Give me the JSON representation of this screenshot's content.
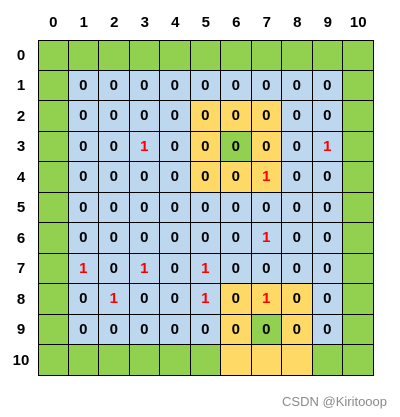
{
  "column_headers": [
    "0",
    "1",
    "2",
    "3",
    "4",
    "5",
    "6",
    "7",
    "8",
    "9",
    "10"
  ],
  "row_headers": [
    "0",
    "1",
    "2",
    "3",
    "4",
    "5",
    "6",
    "7",
    "8",
    "9",
    "10"
  ],
  "colors": {
    "green": "#92d050",
    "blue": "#bdd7ee",
    "orange": "#ffd966",
    "text": "#000000",
    "highlight_text": "#ff0000"
  },
  "cell_fill_rows": [
    "GGGGGGGGGGG",
    "GBBBBBBBBBG",
    "GBBBBOOOBBG",
    "GBBBBOGOBBG",
    "GBBBBOOOBBG",
    "GBBBBBBBBBG",
    "GBBBBBBBBBG",
    "GBBBBBBBBBG",
    "GBBBBBOOOBG",
    "GBBBBBOGOBG",
    "GGGGGGOOOGG"
  ],
  "grid_values": [
    [
      "",
      "",
      "",
      "",
      "",
      "",
      "",
      "",
      "",
      "",
      ""
    ],
    [
      "",
      "0",
      "0",
      "0",
      "0",
      "0",
      "0",
      "0",
      "0",
      "0",
      ""
    ],
    [
      "",
      "0",
      "0",
      "0",
      "0",
      "0",
      "0",
      "0",
      "0",
      "0",
      ""
    ],
    [
      "",
      "0",
      "0",
      "1",
      "0",
      "0",
      "0",
      "0",
      "0",
      "1",
      ""
    ],
    [
      "",
      "0",
      "0",
      "0",
      "0",
      "0",
      "0",
      "1",
      "0",
      "0",
      ""
    ],
    [
      "",
      "0",
      "0",
      "0",
      "0",
      "0",
      "0",
      "0",
      "0",
      "0",
      ""
    ],
    [
      "",
      "0",
      "0",
      "0",
      "0",
      "0",
      "0",
      "1",
      "0",
      "0",
      ""
    ],
    [
      "",
      "1",
      "0",
      "1",
      "0",
      "1",
      "0",
      "0",
      "0",
      "0",
      ""
    ],
    [
      "",
      "0",
      "1",
      "0",
      "0",
      "1",
      "0",
      "1",
      "0",
      "0",
      ""
    ],
    [
      "",
      "0",
      "0",
      "0",
      "0",
      "0",
      "0",
      "0",
      "0",
      "0",
      ""
    ],
    [
      "",
      "",
      "",
      "",
      "",
      "",
      "",
      "",
      "",
      "",
      ""
    ]
  ],
  "watermark": "CSDN @Kiritooop"
}
